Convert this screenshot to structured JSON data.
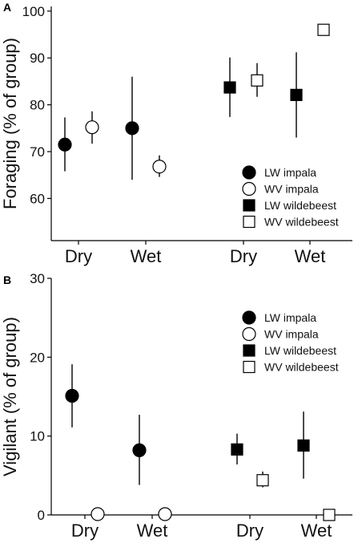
{
  "chart_data": [
    {
      "panel_label": "A",
      "type": "scatter",
      "ylabel": "Foraging (% of group)",
      "ylim": [
        51,
        101
      ],
      "yticks": [
        60,
        70,
        80,
        90,
        100
      ],
      "categories": [
        "Dry",
        "Wet",
        "Dry",
        "Wet"
      ],
      "legend_position": "bottom-right",
      "series": [
        {
          "name": "LW impala",
          "marker": "filled-circle",
          "points": [
            {
              "category": 0,
              "value": 71.5,
              "lower": 65.8,
              "upper": 77.3
            },
            {
              "category": 1,
              "value": 75.0,
              "lower": 64.0,
              "upper": 86.0
            }
          ]
        },
        {
          "name": "WV impala",
          "marker": "open-circle",
          "points": [
            {
              "category": 0,
              "value": 75.2,
              "lower": 71.7,
              "upper": 78.6
            },
            {
              "category": 1,
              "value": 66.8,
              "lower": 64.6,
              "upper": 69.2
            }
          ]
        },
        {
          "name": "LW wildebeest",
          "marker": "filled-square",
          "points": [
            {
              "category": 2,
              "value": 83.7,
              "lower": 77.4,
              "upper": 90.1
            },
            {
              "category": 3,
              "value": 82.1,
              "lower": 73.0,
              "upper": 91.2
            }
          ]
        },
        {
          "name": "WV wildebeest",
          "marker": "open-square",
          "points": [
            {
              "category": 2,
              "value": 85.2,
              "lower": 81.7,
              "upper": 88.9
            },
            {
              "category": 3,
              "value": 96.0,
              "lower": 96.0,
              "upper": 96.0
            }
          ]
        }
      ]
    },
    {
      "panel_label": "B",
      "type": "scatter",
      "ylabel": "Vigilant (% of group)",
      "ylim": [
        0,
        30
      ],
      "yticks": [
        0,
        10,
        20,
        30
      ],
      "categories": [
        "Dry",
        "Wet",
        "Dry",
        "Wet"
      ],
      "legend_position": "top-right",
      "series": [
        {
          "name": "LW impala",
          "marker": "filled-circle",
          "points": [
            {
              "category": 0,
              "value": 15.1,
              "lower": 11.1,
              "upper": 19.1
            },
            {
              "category": 1,
              "value": 8.2,
              "lower": 3.8,
              "upper": 12.7
            }
          ]
        },
        {
          "name": "WV impala",
          "marker": "open-circle",
          "points": [
            {
              "category": 0,
              "value": 0.1,
              "lower": 0.1,
              "upper": 0.1
            },
            {
              "category": 1,
              "value": 0.1,
              "lower": 0.1,
              "upper": 0.1
            }
          ]
        },
        {
          "name": "LW wildebeest",
          "marker": "filled-square",
          "points": [
            {
              "category": 2,
              "value": 8.3,
              "lower": 6.4,
              "upper": 10.3
            },
            {
              "category": 3,
              "value": 8.8,
              "lower": 4.6,
              "upper": 13.1
            }
          ]
        },
        {
          "name": "WV wildebeest",
          "marker": "open-square",
          "points": [
            {
              "category": 2,
              "value": 4.4,
              "lower": 3.5,
              "upper": 5.5
            },
            {
              "category": 3,
              "value": 0.0,
              "lower": 0.0,
              "upper": 0.0
            }
          ]
        }
      ]
    }
  ]
}
